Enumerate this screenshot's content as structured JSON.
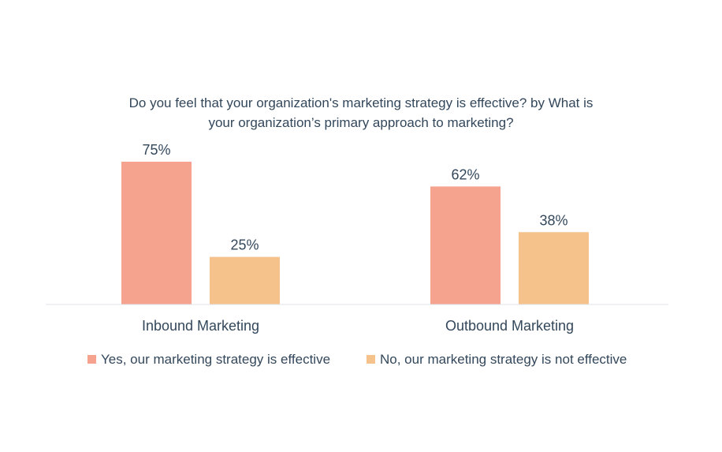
{
  "chart_data": {
    "type": "bar",
    "title_lines": [
      "Do you feel that your organization's marketing strategy is effective? by What is",
      "your organization’s primary approach to marketing?"
    ],
    "categories": [
      "Inbound Marketing",
      "Outbound Marketing"
    ],
    "series": [
      {
        "name": "Yes, our marketing strategy is effective",
        "values": [
          75,
          62
        ],
        "labels": [
          "75%",
          "62%"
        ],
        "color": "#f5a38f"
      },
      {
        "name": "No, our marketing strategy is not effective",
        "values": [
          25,
          38
        ],
        "labels": [
          "25%",
          "38%"
        ],
        "color": "#f6c28b"
      }
    ],
    "ylim": [
      0,
      75
    ],
    "grid": false,
    "legend_position": "bottom",
    "axis_line_color": "#dfe3eb"
  }
}
